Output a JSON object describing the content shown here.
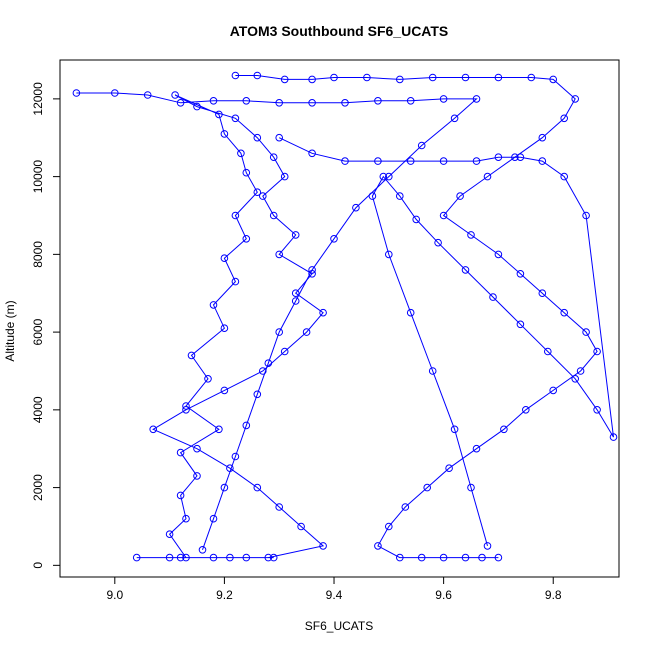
{
  "chart_data": {
    "type": "line",
    "title": "ATOM3 Southbound SF6_UCATS",
    "xlabel": "SF6_UCATS",
    "ylabel": "Altitude (m)",
    "xlim": [
      8.9,
      9.92
    ],
    "ylim": [
      -300,
      13000
    ],
    "xticks": [
      9.0,
      9.2,
      9.4,
      9.6,
      9.8
    ],
    "xtick_labels": [
      "9.0",
      "9.2",
      "9.4",
      "9.6",
      "9.8"
    ],
    "yticks": [
      0,
      2000,
      4000,
      6000,
      8000,
      10000,
      12000
    ],
    "ytick_labels": [
      "0",
      "2000",
      "4000",
      "6000",
      "8000",
      "10000",
      "12000"
    ],
    "grid": false,
    "series_color": "#0000ff",
    "marker": "open-circle",
    "series": [
      {
        "x": [
          9.04,
          9.1,
          9.13,
          9.1,
          9.13,
          9.12,
          9.15,
          9.12,
          9.19,
          9.13,
          9.17,
          9.14,
          9.2,
          9.18,
          9.22,
          9.2,
          9.24,
          9.22,
          9.26,
          9.24,
          9.23,
          9.2,
          9.19,
          9.11,
          9.15,
          9.22,
          9.26,
          9.29,
          9.31,
          9.27,
          9.29,
          9.33,
          9.3,
          9.36,
          9.33,
          9.38,
          9.35,
          9.31,
          9.27,
          9.2,
          9.13,
          9.07,
          9.15,
          9.21,
          9.26,
          9.3,
          9.34,
          9.38,
          9.28,
          9.24,
          9.18,
          9.12,
          9.21,
          9.29
        ],
        "y": [
          200,
          200,
          200,
          800,
          1200,
          1800,
          2300,
          2900,
          3500,
          4100,
          4800,
          5400,
          6100,
          6700,
          7300,
          7900,
          8400,
          9000,
          9600,
          10100,
          10600,
          11100,
          11600,
          12100,
          11800,
          11500,
          11000,
          10500,
          10000,
          9500,
          9000,
          8500,
          8000,
          7500,
          7000,
          6500,
          6000,
          5500,
          5000,
          4500,
          4000,
          3500,
          3000,
          2500,
          2000,
          1500,
          1000,
          500,
          200,
          200,
          200,
          200,
          200,
          200
        ]
      },
      {
        "x": [
          9.22,
          9.26,
          9.31,
          9.36,
          9.4,
          9.46,
          9.52,
          9.58,
          9.64,
          9.7,
          9.76,
          9.8,
          9.84,
          9.82,
          9.78,
          9.73,
          9.68,
          9.63,
          9.6,
          9.65,
          9.7,
          9.74,
          9.78,
          9.82,
          9.86,
          9.88,
          9.85,
          9.8,
          9.75,
          9.71,
          9.66,
          9.61,
          9.57,
          9.53,
          9.5,
          9.48,
          9.52,
          9.56,
          9.6,
          9.64,
          9.67,
          9.7
        ],
        "y": [
          12600,
          12600,
          12500,
          12500,
          12550,
          12550,
          12500,
          12550,
          12550,
          12550,
          12550,
          12500,
          12000,
          11500,
          11000,
          10500,
          10000,
          9500,
          9000,
          8500,
          8000,
          7500,
          7000,
          6500,
          6000,
          5500,
          5000,
          4500,
          4000,
          3500,
          3000,
          2500,
          2000,
          1500,
          1000,
          500,
          200,
          200,
          200,
          200,
          200,
          200
        ]
      },
      {
        "x": [
          9.3,
          9.36,
          9.42,
          9.48,
          9.54,
          9.6,
          9.66,
          9.7,
          9.74,
          9.78,
          9.82,
          9.86,
          9.91,
          9.88,
          9.84,
          9.79,
          9.74,
          9.69,
          9.64,
          9.59,
          9.55,
          9.52,
          9.49,
          9.47,
          9.5,
          9.54,
          9.58,
          9.62,
          9.65,
          9.68
        ],
        "y": [
          11000,
          10600,
          10400,
          10400,
          10400,
          10400,
          10400,
          10500,
          10500,
          10400,
          10000,
          9000,
          3300,
          4000,
          4800,
          5500,
          6200,
          6900,
          7600,
          8300,
          8900,
          9500,
          10000,
          9500,
          8000,
          6500,
          5000,
          3500,
          2000,
          500
        ]
      },
      {
        "x": [
          8.93,
          9.0,
          9.06,
          9.12,
          9.18,
          9.24,
          9.3,
          9.36,
          9.42,
          9.48,
          9.54,
          9.6,
          9.66,
          9.62,
          9.56,
          9.5,
          9.44,
          9.4,
          9.36,
          9.33,
          9.3,
          9.28,
          9.26,
          9.24,
          9.22,
          9.2,
          9.18,
          9.16
        ],
        "y": [
          12150,
          12150,
          12100,
          11900,
          11950,
          11950,
          11900,
          11900,
          11900,
          11950,
          11950,
          12000,
          12000,
          11500,
          10800,
          10000,
          9200,
          8400,
          7600,
          6800,
          6000,
          5200,
          4400,
          3600,
          2800,
          2000,
          1200,
          400
        ]
      }
    ]
  }
}
